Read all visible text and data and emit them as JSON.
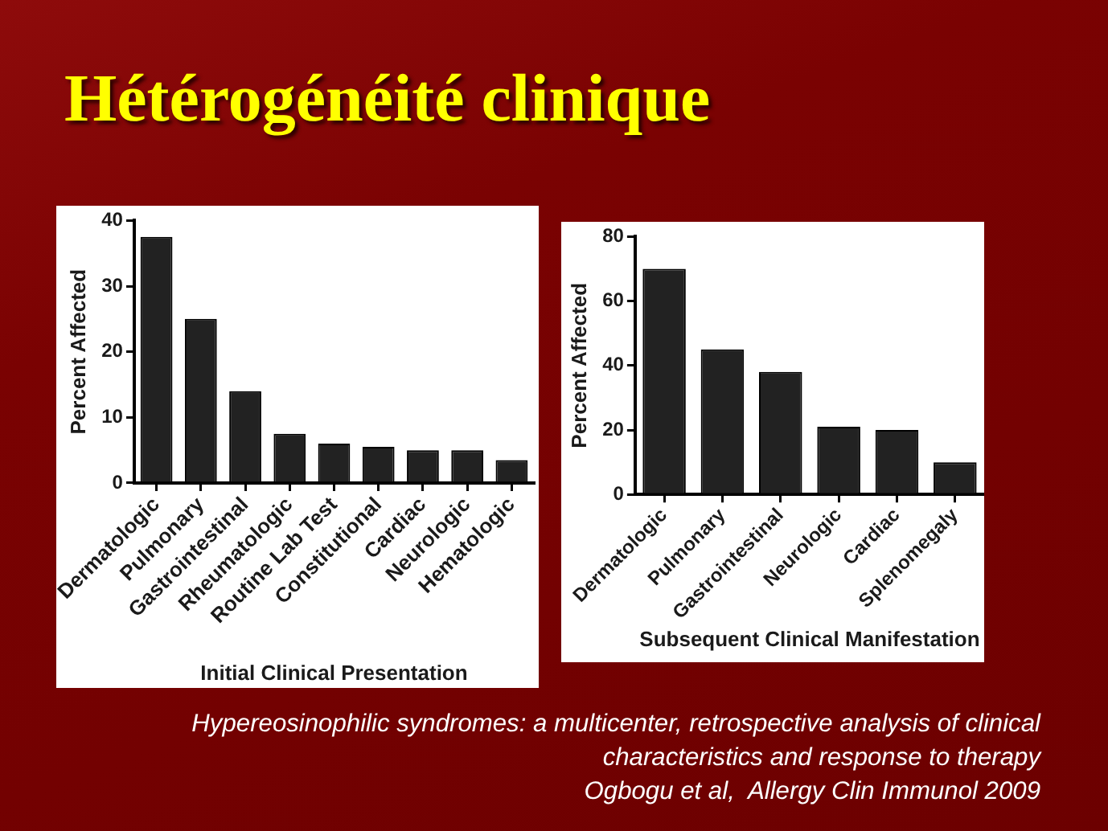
{
  "chart_data": [
    {
      "type": "bar",
      "title": "Hétérogénéité clinique",
      "xlabel": "Initial Clinical Presentation",
      "ylabel": "Percent Affected",
      "categories": [
        "Dermatologic",
        "Pulmonary",
        "Gastrointestinal",
        "Rheumatologic",
        "Routine Lab Test",
        "Constitutional",
        "Cardiac",
        "Neurologic",
        "Hematologic"
      ],
      "values": [
        37.5,
        25,
        14,
        7.5,
        6,
        5.5,
        5,
        5,
        3.5
      ],
      "color": "#222222",
      "ylim": [
        0,
        40
      ],
      "yticks": [
        0,
        10,
        20,
        30,
        40
      ]
    },
    {
      "type": "bar",
      "xlabel": "Subsequent Clinical Manifestation",
      "ylabel": "Percent Affected",
      "categories": [
        "Dermatologic",
        "Pulmonary",
        "Gastrointestinal",
        "Neurologic",
        "Cardiac",
        "Splenomegaly"
      ],
      "values": [
        70,
        45,
        38,
        21,
        20,
        10
      ],
      "color": "#222222",
      "ylim": [
        0,
        80
      ],
      "yticks": [
        0,
        20,
        40,
        60,
        80
      ],
      "annotations": [
        "Hypereosinophilic syndromes: a multicenter, retrospective analysis of clinical characteristics and response to therapy",
        "Ogbogu et al,  Allergy Clin Immunol 2009"
      ]
    }
  ]
}
